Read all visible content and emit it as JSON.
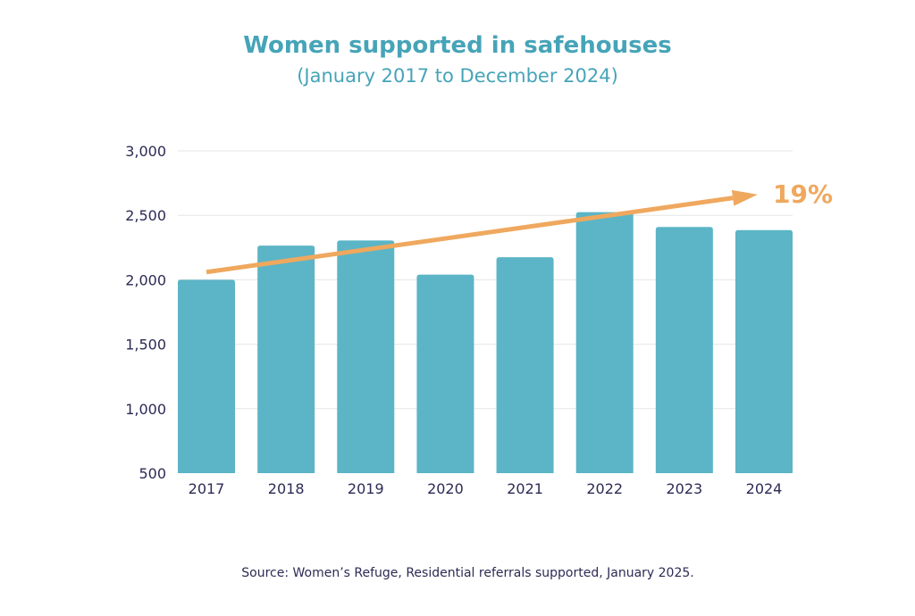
{
  "chart_data": {
    "type": "bar",
    "title": "Women supported in safehouses",
    "subtitle": "(January 2017 to December 2024)",
    "categories": [
      "2017",
      "2018",
      "2019",
      "2020",
      "2021",
      "2022",
      "2023",
      "2024"
    ],
    "values": [
      2000,
      2265,
      2305,
      2040,
      2175,
      2525,
      2410,
      2385
    ],
    "ylim": [
      500,
      3000
    ],
    "yticks": [
      500,
      1000,
      1500,
      2000,
      2500,
      3000
    ],
    "ytick_labels": [
      "500",
      "1,000",
      "1,500",
      "2,000",
      "2,500",
      "3,000"
    ],
    "grid": true,
    "trend": {
      "start_category": "2017",
      "start_value": 2060,
      "end_value": 2650,
      "label": "19%"
    },
    "source": "Source: Women’s Refuge, Residential referrals supported, January 2025."
  },
  "colors": {
    "title": "#46a4b8",
    "bar": "#5bb5c6",
    "trend": "#efa85e",
    "axis_text": "#2d2a55",
    "grid": "#e6e6e6"
  }
}
